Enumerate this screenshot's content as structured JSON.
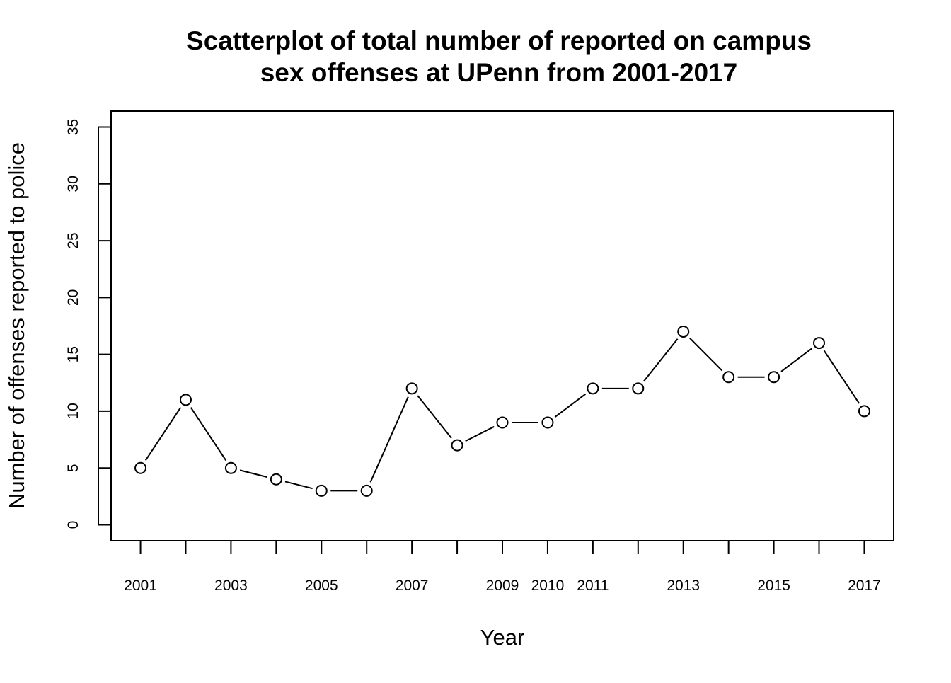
{
  "chart_data": {
    "type": "line",
    "title_lines": [
      "Scatterplot of total number of reported on campus",
      "sex offenses at UPenn from 2001-2017"
    ],
    "xlabel": "Year",
    "ylabel": "Number of offenses reported to police",
    "x": [
      2001,
      2002,
      2003,
      2004,
      2005,
      2006,
      2007,
      2008,
      2009,
      2010,
      2011,
      2012,
      2013,
      2014,
      2015,
      2016,
      2017
    ],
    "y": [
      5,
      11,
      5,
      4,
      3,
      3,
      12,
      7,
      9,
      9,
      12,
      12,
      17,
      13,
      13,
      16,
      10
    ],
    "xlim": [
      2000.35,
      2017.65
    ],
    "ylim": [
      -1.4,
      36.4
    ],
    "x_tick_labels": [
      "2001",
      "2003",
      "2005",
      "2007",
      "2009",
      "2010",
      "2011",
      "2013",
      "2015",
      "2017"
    ],
    "y_ticks": [
      0,
      5,
      10,
      15,
      20,
      25,
      30,
      35
    ],
    "marker": "open-circle",
    "line": true,
    "grid": false,
    "colors": {
      "series": "#000000",
      "background": "#ffffff"
    }
  }
}
